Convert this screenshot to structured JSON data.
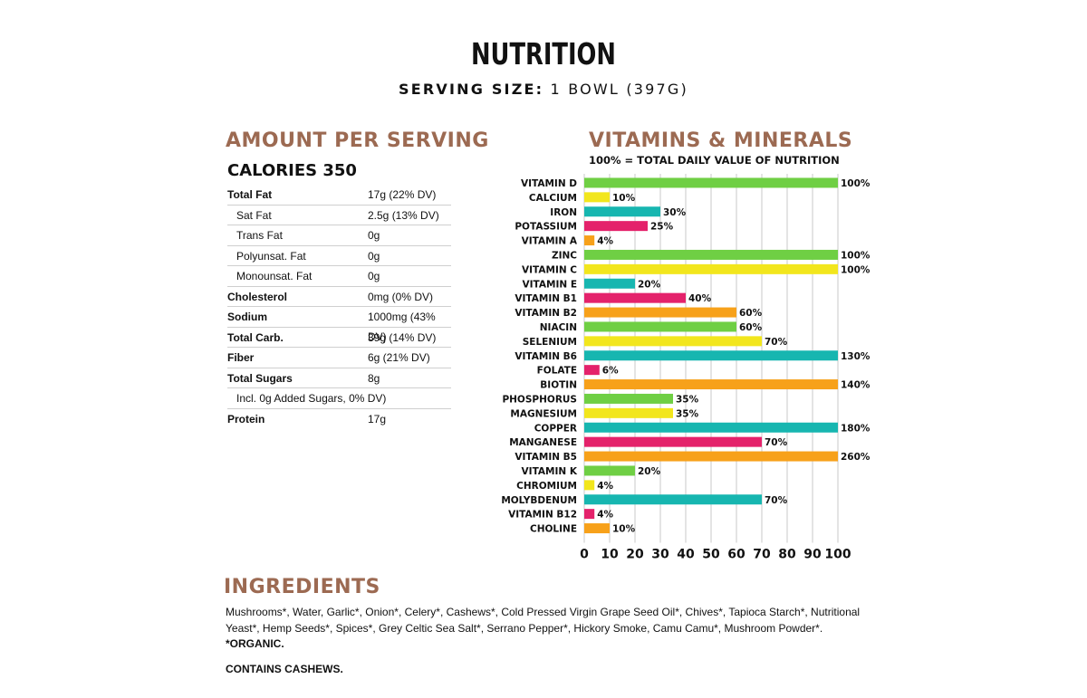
{
  "header": {
    "title": "NUTRITION",
    "serving_label": "SERVING SIZE:",
    "serving_value": "1 BOWL (397G)"
  },
  "amount": {
    "heading": "AMOUNT PER SERVING",
    "calories": "CALORIES 350",
    "rows": [
      {
        "name": "Total Fat",
        "value": "17g (22% DV)",
        "bold": true,
        "indent": false
      },
      {
        "name": "Sat Fat",
        "value": "2.5g (13% DV)",
        "bold": false,
        "indent": true
      },
      {
        "name": "Trans Fat",
        "value": "0g",
        "bold": false,
        "indent": true
      },
      {
        "name": "Polyunsat. Fat",
        "value": "0g",
        "bold": false,
        "indent": true
      },
      {
        "name": "Monounsat. Fat",
        "value": "0g",
        "bold": false,
        "indent": true
      },
      {
        "name": "Cholesterol",
        "value": "0mg (0% DV)",
        "bold": true,
        "indent": false
      },
      {
        "name": "Sodium",
        "value": "1000mg (43% DV)",
        "bold": true,
        "indent": false
      },
      {
        "name": "Total Carb.",
        "value": "39g (14% DV)",
        "bold": true,
        "indent": false
      },
      {
        "name": "Fiber",
        "value": "6g (21% DV)",
        "bold": true,
        "indent": false
      },
      {
        "name": "Total Sugars",
        "value": "8g",
        "bold": true,
        "indent": false
      },
      {
        "name": "Incl. 0g Added Sugars, 0% DV)",
        "value": "",
        "bold": false,
        "indent": true
      },
      {
        "name": "Protein",
        "value": "17g",
        "bold": true,
        "indent": false
      }
    ]
  },
  "vitamins": {
    "heading": "VITAMINS & MINERALS",
    "subheading": "100% = TOTAL DAILY VALUE OF NUTRITION"
  },
  "colors": {
    "green": "#6fcf44",
    "yellow": "#f2e61d",
    "teal": "#17b6b0",
    "pink": "#e4226b",
    "orange": "#f7a11a",
    "heading": "#9c6a52",
    "grid": "#c8c8c8"
  },
  "chart_data": {
    "type": "bar",
    "orientation": "horizontal",
    "categories": [
      "VITAMIN D",
      "CALCIUM",
      "IRON",
      "POTASSIUM",
      "VITAMIN A",
      "ZINC",
      "VITAMIN C",
      "VITAMIN E",
      "VITAMIN B1",
      "VITAMIN B2",
      "NIACIN",
      "SELENIUM",
      "VITAMIN B6",
      "FOLATE",
      "BIOTIN",
      "PHOSPHORUS",
      "MAGNESIUM",
      "COPPER",
      "MANGANESE",
      "VITAMIN B5",
      "VITAMIN K",
      "CHROMIUM",
      "MOLYBDENUM",
      "VITAMIN B12",
      "CHOLINE"
    ],
    "values": [
      100,
      10,
      30,
      25,
      4,
      100,
      100,
      20,
      40,
      60,
      60,
      70,
      130,
      6,
      140,
      35,
      35,
      180,
      70,
      260,
      20,
      4,
      70,
      4,
      10
    ],
    "value_labels": [
      "100%",
      "10%",
      "30%",
      "25%",
      "4%",
      "100%",
      "100%",
      "20%",
      "40%",
      "60%",
      "60%",
      "70%",
      "130%",
      "6%",
      "140%",
      "35%",
      "35%",
      "180%",
      "70%",
      "260%",
      "20%",
      "4%",
      "70%",
      "4%",
      "10%"
    ],
    "bar_colors": [
      "green",
      "yellow",
      "teal",
      "pink",
      "orange",
      "green",
      "yellow",
      "teal",
      "pink",
      "orange",
      "green",
      "yellow",
      "teal",
      "pink",
      "orange",
      "green",
      "yellow",
      "teal",
      "pink",
      "orange",
      "green",
      "yellow",
      "teal",
      "pink",
      "orange"
    ],
    "xlim": [
      0,
      100
    ],
    "xticks": [
      "0",
      "10",
      "20",
      "30",
      "40",
      "50",
      "60",
      "70",
      "80",
      "90",
      "100"
    ],
    "grid": true
  },
  "ingredients": {
    "heading": "INGREDIENTS",
    "text": "Mushrooms*, Water, Garlic*, Onion*, Celery*, Cashews*, Cold Pressed Virgin Grape Seed Oil*, Chives*, Tapioca Starch*, Nutritional Yeast*, Hemp Seeds*, Spices*, Grey Celtic Sea Salt*, Serrano Pepper*, Hickory Smoke, Camu Camu*, Mushroom Powder*.",
    "organic": "*ORGANIC.",
    "contains": "CONTAINS CASHEWS."
  }
}
